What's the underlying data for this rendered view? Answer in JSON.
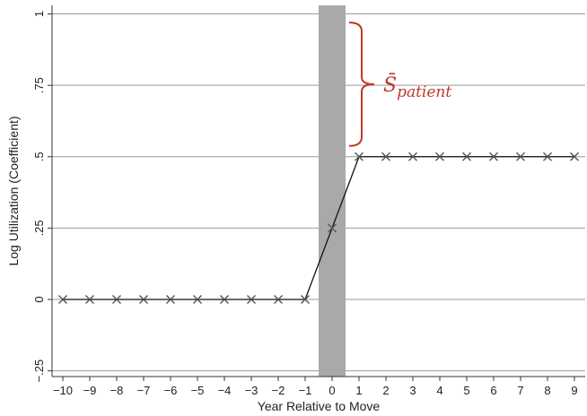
{
  "chart_data": {
    "type": "line",
    "title": "",
    "xlabel": "Year Relative to Move",
    "ylabel": "Log Utilization (Coefficient)",
    "xlim": [
      -10,
      9
    ],
    "ylim": [
      -0.25,
      1
    ],
    "x_ticks": [
      -10,
      -9,
      -8,
      -7,
      -6,
      -5,
      -4,
      -3,
      -2,
      -1,
      0,
      1,
      2,
      3,
      4,
      5,
      6,
      7,
      8,
      9
    ],
    "x_tick_labels": [
      "−10",
      "−9",
      "−8",
      "−7",
      "−6",
      "−5",
      "−4",
      "−3",
      "−2",
      "−1",
      "0",
      "1",
      "2",
      "3",
      "4",
      "5",
      "6",
      "7",
      "8",
      "9"
    ],
    "y_ticks": [
      -0.25,
      0,
      0.25,
      0.5,
      0.75,
      1
    ],
    "y_tick_labels": [
      "−.25",
      "0",
      ".25",
      ".5",
      ".75",
      "1"
    ],
    "grid": "horizontal",
    "series": [
      {
        "marker": "x",
        "color": "#555555",
        "x": [
          -10,
          -9,
          -8,
          -7,
          -6,
          -5,
          -4,
          -3,
          -2,
          -1,
          0,
          1,
          2,
          3,
          4,
          5,
          6,
          7,
          8,
          9
        ],
        "y": [
          0,
          0,
          0,
          0,
          0,
          0,
          0,
          0,
          0,
          0,
          0.25,
          0.5,
          0.5,
          0.5,
          0.5,
          0.5,
          0.5,
          0.5,
          0.5,
          0.5
        ]
      }
    ],
    "shaded_band": {
      "x_range": [
        -0.5,
        0.5
      ],
      "color": "#a9a9a9"
    },
    "annotation": {
      "text_main": "S̄",
      "text_sub": "patient",
      "bracket_y_range": [
        0.5,
        0.97
      ],
      "color": "#c0392b"
    }
  }
}
